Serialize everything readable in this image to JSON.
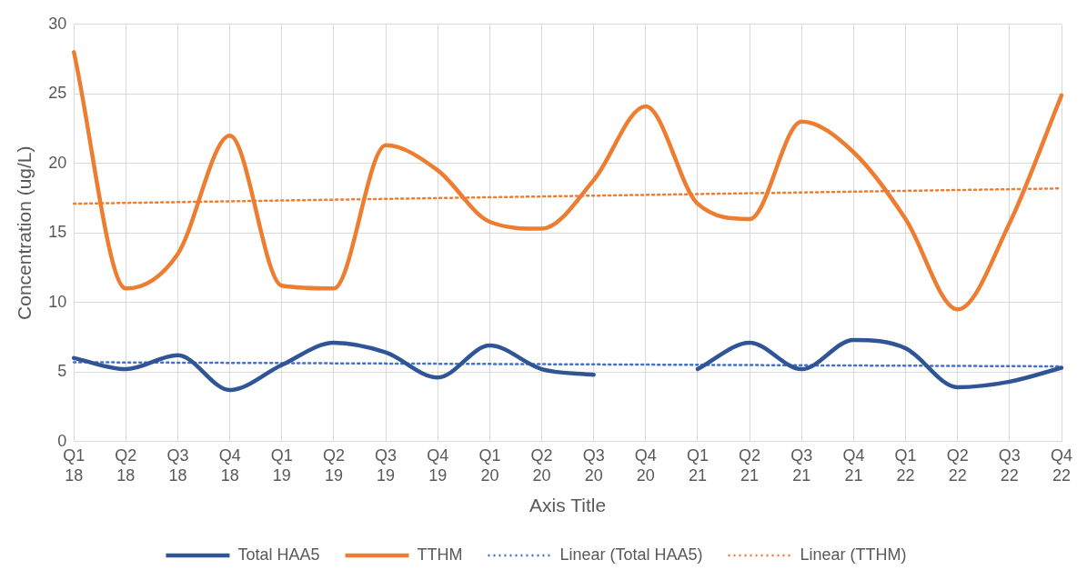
{
  "chart_data": {
    "type": "line",
    "xlabel": "Axis Title",
    "ylabel": "Concentration (ug/L)",
    "categories": [
      "Q1 18",
      "Q2 18",
      "Q3 18",
      "Q4 18",
      "Q1 19",
      "Q2 19",
      "Q3 19",
      "Q4 19",
      "Q1 20",
      "Q2 20",
      "Q3 20",
      "Q4 20",
      "Q1 21",
      "Q2 21",
      "Q3 21",
      "Q4 21",
      "Q1 22",
      "Q2 22",
      "Q3 22",
      "Q4 22"
    ],
    "series": [
      {
        "name": "Total HAA5",
        "color": "#2f5597",
        "values": [
          6.0,
          5.2,
          6.2,
          3.7,
          5.5,
          7.1,
          6.4,
          4.6,
          6.9,
          5.2,
          4.8,
          null,
          5.2,
          7.1,
          5.2,
          7.3,
          6.7,
          3.9,
          4.3,
          5.3
        ]
      },
      {
        "name": "TTHM",
        "color": "#ed7d31",
        "values": [
          28,
          11.0,
          13.5,
          22,
          11.2,
          11,
          21.3,
          19.5,
          15.8,
          15.3,
          18.8,
          24.1,
          17.1,
          16,
          23,
          20.8,
          16,
          9.5,
          15.7,
          24.9
        ]
      },
      {
        "name": "Linear (Total HAA5)",
        "type": "line",
        "color": "#4472c4",
        "line_style": "dotted",
        "x": [
          "Q1 18",
          "Q4 22"
        ],
        "values": [
          5.7,
          5.4
        ]
      },
      {
        "name": "Linear (TTHM)",
        "type": "line",
        "color": "#ed7d31",
        "line_style": "dotted",
        "x": [
          "Q1 18",
          "Q4 22"
        ],
        "values": [
          17.1,
          18.2
        ]
      }
    ],
    "ylim": [
      0,
      30
    ],
    "yticks": [
      0,
      5,
      10,
      15,
      20,
      25,
      30
    ],
    "grid": true,
    "legend": "bottom",
    "marker": "none",
    "line_style": "solid"
  }
}
